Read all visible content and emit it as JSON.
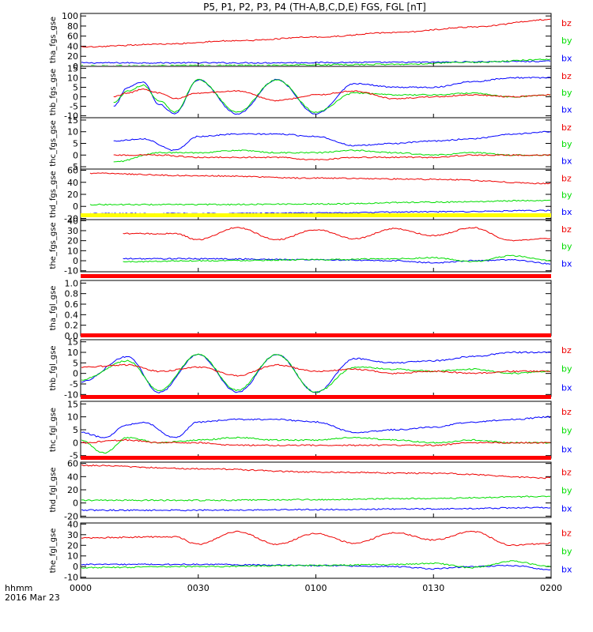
{
  "title": "P5, P1, P2, P3, P4 (TH-A,B,C,D,E) FGS, FGL [nT]",
  "colors": {
    "bx": "#0000ff",
    "by": "#00dd00",
    "bz": "#ee0000",
    "frame": "#000000",
    "bar_yellow": "#ffff00",
    "bar_red": "#ff0000"
  },
  "footer": {
    "time_label": "hhmm",
    "date_label": "2016 Mar 23"
  },
  "chart_data": {
    "type": "line",
    "x_axis": {
      "range": [
        "0000",
        "0200"
      ],
      "tick_labels": [
        "0000",
        "0030",
        "0100",
        "0130",
        "0200"
      ]
    },
    "panels": [
      {
        "ylabel": "tha_fgs_gse",
        "yticks": [
          "0",
          "20",
          "40",
          "60",
          "80",
          "100"
        ],
        "ylim": [
          0,
          105
        ],
        "legend": [
          "bz",
          "by",
          "bx"
        ],
        "start": 0.04,
        "status_bar": "",
        "series": [
          {
            "name": "bz",
            "x": [
              0.0,
              0.1667,
              0.3333,
              0.5,
              0.6667,
              0.8333,
              1.0
            ],
            "values": [
              38,
              44,
              51,
              58,
              67,
              78,
              93
            ]
          },
          {
            "name": "by",
            "x": [
              0.0,
              0.3333,
              0.6667,
              0.8333,
              1.0
            ],
            "values": [
              1,
              2,
              4,
              8,
              14
            ]
          },
          {
            "name": "bx",
            "x": [
              0.0,
              0.3333,
              0.6667,
              1.0
            ],
            "values": [
              7,
              7,
              8,
              10
            ]
          }
        ]
      },
      {
        "ylabel": "thb_fgs_gse",
        "yticks": [
          "-10",
          "-5",
          "0",
          "5",
          "10",
          "15"
        ],
        "ylim": [
          -11,
          16
        ],
        "legend": [
          "bz",
          "by",
          "bx"
        ],
        "start": 0.07,
        "status_bar": "",
        "series": [
          {
            "name": "bz",
            "x": [
              0.07,
              0.1,
              0.133,
              0.167,
              0.2,
              0.25,
              0.333,
              0.417,
              0.5,
              0.583,
              0.667,
              0.75,
              0.833,
              0.917,
              1.0
            ],
            "values": [
              0,
              2,
              4,
              2,
              -1,
              2,
              3,
              -2,
              1,
              3,
              -1,
              0,
              1,
              0,
              1
            ]
          },
          {
            "name": "by",
            "x": [
              0.07,
              0.1,
              0.133,
              0.167,
              0.2,
              0.25,
              0.333,
              0.417,
              0.5,
              0.583,
              0.667,
              0.75,
              0.833,
              0.917,
              1.0
            ],
            "values": [
              -3,
              3,
              6,
              -2,
              -8,
              9,
              -8,
              9,
              -8,
              2,
              1,
              1,
              2,
              0,
              1
            ]
          },
          {
            "name": "bx",
            "x": [
              0.07,
              0.1,
              0.133,
              0.167,
              0.2,
              0.25,
              0.333,
              0.417,
              0.5,
              0.583,
              0.667,
              0.75,
              0.833,
              0.917,
              1.0
            ],
            "values": [
              -5,
              5,
              8,
              -4,
              -9,
              9,
              -9,
              9,
              -9,
              7,
              5,
              5,
              8,
              10,
              10
            ]
          }
        ]
      },
      {
        "ylabel": "thc_fgs_gse",
        "yticks": [
          "-5",
          "0",
          "5",
          "10",
          "15"
        ],
        "ylim": [
          -6,
          16
        ],
        "legend": [
          "bz",
          "by",
          "bx"
        ],
        "start": 0.07,
        "status_bar": "",
        "series": [
          {
            "name": "bz",
            "x": [
              0.07,
              0.167,
              0.25,
              0.333,
              0.417,
              0.5,
              0.583,
              0.667,
              0.75,
              0.833,
              0.917,
              1.0
            ],
            "values": [
              0,
              0,
              -1,
              -1,
              -1,
              -2,
              -1,
              -1,
              -1,
              0,
              0,
              0
            ]
          },
          {
            "name": "by",
            "x": [
              0.07,
              0.167,
              0.25,
              0.333,
              0.417,
              0.5,
              0.583,
              0.667,
              0.75,
              0.833,
              0.917,
              1.0
            ],
            "values": [
              -3,
              1,
              1,
              2,
              1,
              1,
              2,
              1,
              0,
              1,
              0,
              0
            ]
          },
          {
            "name": "bx",
            "x": [
              0.07,
              0.133,
              0.2,
              0.25,
              0.333,
              0.417,
              0.5,
              0.583,
              0.667,
              0.75,
              0.833,
              0.917,
              1.0
            ],
            "values": [
              6,
              7,
              2,
              8,
              9,
              9,
              8,
              4,
              5,
              6,
              7,
              9,
              10
            ]
          }
        ]
      },
      {
        "ylabel": "thd_fgs_gse",
        "yticks": [
          "-20",
          "0",
          "20",
          "40",
          "60"
        ],
        "ylim": [
          -22,
          62
        ],
        "legend": [
          "bz",
          "by",
          "bx"
        ],
        "start": 0.02,
        "status_bar": "",
        "series": [
          {
            "name": "bz",
            "x": [
              0.02,
              0.25,
              0.5,
              0.75,
              1.0
            ],
            "values": [
              55,
              51,
              47,
              45,
              38
            ]
          },
          {
            "name": "by",
            "x": [
              0.02,
              0.25,
              0.5,
              0.75,
              1.0
            ],
            "values": [
              3,
              3,
              4,
              7,
              10
            ]
          },
          {
            "name": "bx",
            "x": [
              0.02,
              0.25,
              0.5,
              0.75,
              1.0
            ],
            "values": [
              -12,
              -12,
              -11,
              -9,
              -7
            ]
          }
        ]
      },
      {
        "ylabel": "the_fgs_gse",
        "yticks": [
          "-10",
          "0",
          "10",
          "20",
          "30",
          "40"
        ],
        "ylim": [
          -11,
          41
        ],
        "legend": [
          "bz",
          "by",
          "bx"
        ],
        "start": 0.09,
        "status_bar": "yellow",
        "series": [
          {
            "name": "bz",
            "x": [
              0.09,
              0.2,
              0.25,
              0.333,
              0.417,
              0.5,
              0.583,
              0.667,
              0.75,
              0.833,
              0.917,
              1.0
            ],
            "values": [
              27,
              27,
              21,
              33,
              21,
              31,
              22,
              32,
              25,
              33,
              20,
              22
            ]
          },
          {
            "name": "by",
            "x": [
              0.09,
              0.25,
              0.5,
              0.667,
              0.75,
              0.833,
              0.917,
              1.0
            ],
            "values": [
              -1,
              0,
              1,
              2,
              3,
              -1,
              5,
              0
            ]
          },
          {
            "name": "bx",
            "x": [
              0.09,
              0.25,
              0.5,
              0.667,
              0.75,
              0.833,
              0.917,
              1.0
            ],
            "values": [
              2,
              2,
              1,
              0,
              -2,
              0,
              1,
              -3
            ]
          }
        ]
      },
      {
        "ylabel": "tha_fgl_gse",
        "yticks": [
          "0.0",
          "0.2",
          "0.4",
          "0.6",
          "0.8",
          "1.0"
        ],
        "ylim": [
          0,
          1.05
        ],
        "legend": [],
        "start": 0.0,
        "status_bar": "red",
        "series": []
      },
      {
        "ylabel": "thb_fgl_gse",
        "yticks": [
          "-10",
          "-5",
          "0",
          "5",
          "10",
          "15"
        ],
        "ylim": [
          -11,
          16
        ],
        "legend": [
          "bz",
          "by",
          "bx"
        ],
        "start": 0.0,
        "status_bar": "red",
        "series": [
          {
            "name": "bz",
            "x": [
              0.0,
              0.1,
              0.167,
              0.25,
              0.333,
              0.417,
              0.5,
              0.583,
              0.667,
              0.75,
              0.833,
              0.917,
              1.0
            ],
            "values": [
              3,
              4,
              1,
              3,
              -1,
              4,
              1,
              2,
              0,
              1,
              0,
              1,
              1
            ]
          },
          {
            "name": "by",
            "x": [
              0.0,
              0.1,
              0.167,
              0.25,
              0.333,
              0.417,
              0.5,
              0.583,
              0.667,
              0.75,
              0.833,
              0.917,
              1.0
            ],
            "values": [
              -3,
              6,
              -8,
              9,
              -8,
              9,
              -9,
              3,
              2,
              1,
              2,
              0,
              1
            ]
          },
          {
            "name": "bx",
            "x": [
              0.0,
              0.1,
              0.167,
              0.25,
              0.333,
              0.417,
              0.5,
              0.583,
              0.667,
              0.75,
              0.833,
              0.917,
              1.0
            ],
            "values": [
              -4,
              8,
              -9,
              9,
              -9,
              9,
              -9,
              7,
              5,
              6,
              8,
              10,
              10
            ]
          }
        ]
      },
      {
        "ylabel": "thc_fgl_gse",
        "yticks": [
          "-5",
          "0",
          "5",
          "10",
          "15"
        ],
        "ylim": [
          -6,
          16
        ],
        "legend": [
          "bz",
          "by",
          "bx"
        ],
        "start": 0.0,
        "status_bar": "red",
        "series": [
          {
            "name": "bz",
            "x": [
              0.0,
              0.1,
              0.167,
              0.25,
              0.333,
              0.417,
              0.5,
              0.583,
              0.667,
              0.75,
              0.833,
              0.917,
              1.0
            ],
            "values": [
              0,
              1,
              0,
              0,
              -1,
              -1,
              -1,
              -1,
              -1,
              -1,
              0,
              0,
              0
            ]
          },
          {
            "name": "by",
            "x": [
              0.0,
              0.05,
              0.1,
              0.167,
              0.25,
              0.333,
              0.417,
              0.5,
              0.583,
              0.667,
              0.75,
              0.833,
              0.917,
              1.0
            ],
            "values": [
              1,
              -4,
              2,
              0,
              1,
              2,
              1,
              1,
              2,
              1,
              0,
              1,
              0,
              0
            ]
          },
          {
            "name": "bx",
            "x": [
              0.0,
              0.05,
              0.1,
              0.133,
              0.2,
              0.25,
              0.333,
              0.417,
              0.5,
              0.583,
              0.667,
              0.75,
              0.833,
              0.917,
              1.0
            ],
            "values": [
              4,
              2,
              7,
              8,
              2,
              8,
              9,
              9,
              8,
              4,
              5,
              6,
              8,
              9,
              10
            ]
          }
        ]
      },
      {
        "ylabel": "thd_fgl_gse",
        "yticks": [
          "-20",
          "0",
          "20",
          "40",
          "60"
        ],
        "ylim": [
          -22,
          62
        ],
        "legend": [
          "bz",
          "by",
          "bx"
        ],
        "start": 0.0,
        "status_bar": "red",
        "series": [
          {
            "name": "bz",
            "x": [
              0.0,
              0.25,
              0.5,
              0.75,
              1.0
            ],
            "values": [
              57,
              52,
              47,
              45,
              38
            ]
          },
          {
            "name": "by",
            "x": [
              0.0,
              0.25,
              0.5,
              0.75,
              1.0
            ],
            "values": [
              4,
              4,
              5,
              7,
              10
            ]
          },
          {
            "name": "bx",
            "x": [
              0.0,
              0.25,
              0.5,
              0.75,
              1.0
            ],
            "values": [
              -11,
              -11,
              -10,
              -9,
              -7
            ]
          }
        ]
      },
      {
        "ylabel": "the_fgl_gse",
        "yticks": [
          "-10",
          "0",
          "10",
          "20",
          "30",
          "40"
        ],
        "ylim": [
          -11,
          41
        ],
        "legend": [
          "bz",
          "by",
          "bx"
        ],
        "start": 0.0,
        "status_bar": "",
        "series": [
          {
            "name": "bz",
            "x": [
              0.0,
              0.2,
              0.25,
              0.333,
              0.417,
              0.5,
              0.583,
              0.667,
              0.75,
              0.833,
              0.917,
              1.0
            ],
            "values": [
              27,
              28,
              21,
              33,
              21,
              31,
              22,
              32,
              25,
              33,
              20,
              22
            ]
          },
          {
            "name": "by",
            "x": [
              0.0,
              0.25,
              0.5,
              0.667,
              0.75,
              0.833,
              0.917,
              1.0
            ],
            "values": [
              -1,
              0,
              1,
              2,
              3,
              -1,
              5,
              0
            ]
          },
          {
            "name": "bx",
            "x": [
              0.0,
              0.25,
              0.5,
              0.667,
              0.75,
              0.833,
              0.917,
              1.0
            ],
            "values": [
              2,
              2,
              1,
              0,
              -2,
              0,
              1,
              -3
            ]
          }
        ]
      }
    ]
  }
}
